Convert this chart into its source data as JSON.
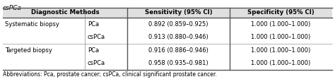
{
  "title": "csPCa",
  "col_headers": [
    "Diagnostic Methods",
    "",
    "Sensitivity (95% CI)",
    "Specificity (95% CI)"
  ],
  "rows": [
    [
      "Systematic biopsy",
      "PCa",
      "0.892 (0.859–0.925)",
      "1.000 (1.000–1.000)"
    ],
    [
      "",
      "csPCa",
      "0.913 (0.880–0.946)",
      "1.000 (1.000–1.000)"
    ],
    [
      "Targeted biopsy",
      "PCa",
      "0.916 (0.886–0.946)",
      "1.000 (1.000–1.000)"
    ],
    [
      "",
      "csPCa",
      "0.958 (0.935–0.981)",
      "1.000 (1.000–1.000)"
    ]
  ],
  "abbreviations": "Abbreviations: Pca, prostate cancer; csPCa, clinical significant prostate cancer.",
  "background_color": "#ffffff",
  "header_bg": "#e0e0e0",
  "font_size": 6.0,
  "header_font_size": 6.2,
  "title_font_size": 6.5,
  "abbrev_font_size": 5.5
}
